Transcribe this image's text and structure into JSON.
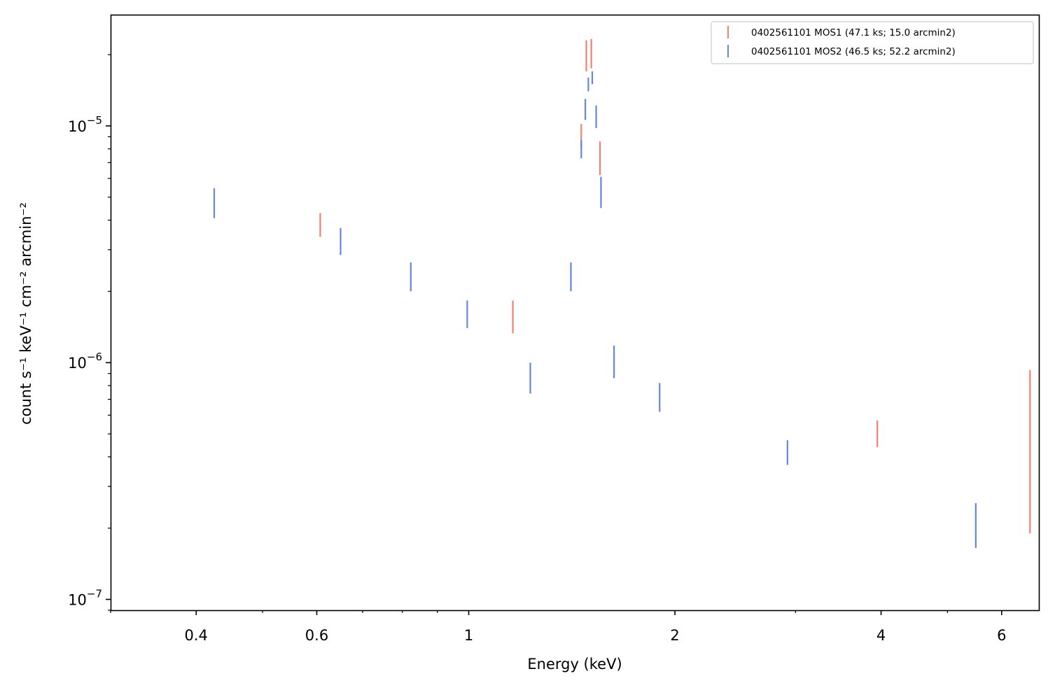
{
  "chart_data": {
    "type": "scatter",
    "title": "",
    "xlabel": "Energy (keV)",
    "ylabel": "count s⁻¹ keV⁻¹ cm⁻² arcmin⁻²",
    "xscale": "log",
    "yscale": "log",
    "xlim": [
      0.3,
      6.8
    ],
    "ylim": [
      9e-08,
      2.95e-05
    ],
    "grid": false,
    "legend_position": "top-right",
    "x_ticks": [
      {
        "value": 0.4,
        "label": "0.4"
      },
      {
        "value": 0.6,
        "label": "0.6"
      },
      {
        "value": 1,
        "label": "1"
      },
      {
        "value": 2,
        "label": "2"
      },
      {
        "value": 4,
        "label": "4"
      },
      {
        "value": 6,
        "label": "6"
      }
    ],
    "y_ticks": [
      {
        "value": 1e-07,
        "base": "10",
        "exp": "−7"
      },
      {
        "value": 1e-06,
        "base": "10",
        "exp": "−6"
      },
      {
        "value": 1e-05,
        "base": "10",
        "exp": "−5"
      }
    ],
    "series": [
      {
        "name": "0402561101 MOS1 (47.1 ks; 15.0 arcmin2)",
        "color": "#f08070",
        "points": [
          {
            "x": 0.607,
            "y_low": 3.4e-06,
            "y_high": 4.28e-06
          },
          {
            "x": 1.16,
            "y_low": 1.33e-06,
            "y_high": 1.83e-06
          },
          {
            "x": 1.46,
            "y_low": 8e-06,
            "y_high": 1.02e-05
          },
          {
            "x": 1.485,
            "y_low": 1.7e-05,
            "y_high": 2.3e-05
          },
          {
            "x": 1.51,
            "y_low": 1.75e-05,
            "y_high": 2.33e-05
          },
          {
            "x": 1.555,
            "y_low": 6.2e-06,
            "y_high": 8.6e-06
          },
          {
            "x": 3.95,
            "y_low": 4.4e-07,
            "y_high": 5.7e-07
          },
          {
            "x": 6.6,
            "y_low": 1.9e-07,
            "y_high": 9.3e-07
          }
        ]
      },
      {
        "name": "0402561101 MOS2 (46.5 ks; 52.2 arcmin2)",
        "color": "#6485e0",
        "points": [
          {
            "x": 0.425,
            "y_low": 4.08e-06,
            "y_high": 5.45e-06
          },
          {
            "x": 0.65,
            "y_low": 2.85e-06,
            "y_high": 3.7e-06
          },
          {
            "x": 0.823,
            "y_low": 2e-06,
            "y_high": 2.65e-06
          },
          {
            "x": 0.995,
            "y_low": 1.4e-06,
            "y_high": 1.83e-06
          },
          {
            "x": 1.23,
            "y_low": 7.4e-07,
            "y_high": 1e-06
          },
          {
            "x": 1.41,
            "y_low": 2e-06,
            "y_high": 2.65e-06
          },
          {
            "x": 1.46,
            "y_low": 7.3e-06,
            "y_high": 8.7e-06
          },
          {
            "x": 1.48,
            "y_low": 1.06e-05,
            "y_high": 1.3e-05
          },
          {
            "x": 1.495,
            "y_low": 1.4e-05,
            "y_high": 1.6e-05
          },
          {
            "x": 1.515,
            "y_low": 1.5e-05,
            "y_high": 1.7e-05
          },
          {
            "x": 1.535,
            "y_low": 9.8e-06,
            "y_high": 1.22e-05
          },
          {
            "x": 1.56,
            "y_low": 4.5e-06,
            "y_high": 6.1e-06
          },
          {
            "x": 1.63,
            "y_low": 8.6e-07,
            "y_high": 1.18e-06
          },
          {
            "x": 1.9,
            "y_low": 6.2e-07,
            "y_high": 8.2e-07
          },
          {
            "x": 2.92,
            "y_low": 3.7e-07,
            "y_high": 4.7e-07
          },
          {
            "x": 5.5,
            "y_low": 1.65e-07,
            "y_high": 2.55e-07
          }
        ]
      }
    ]
  }
}
